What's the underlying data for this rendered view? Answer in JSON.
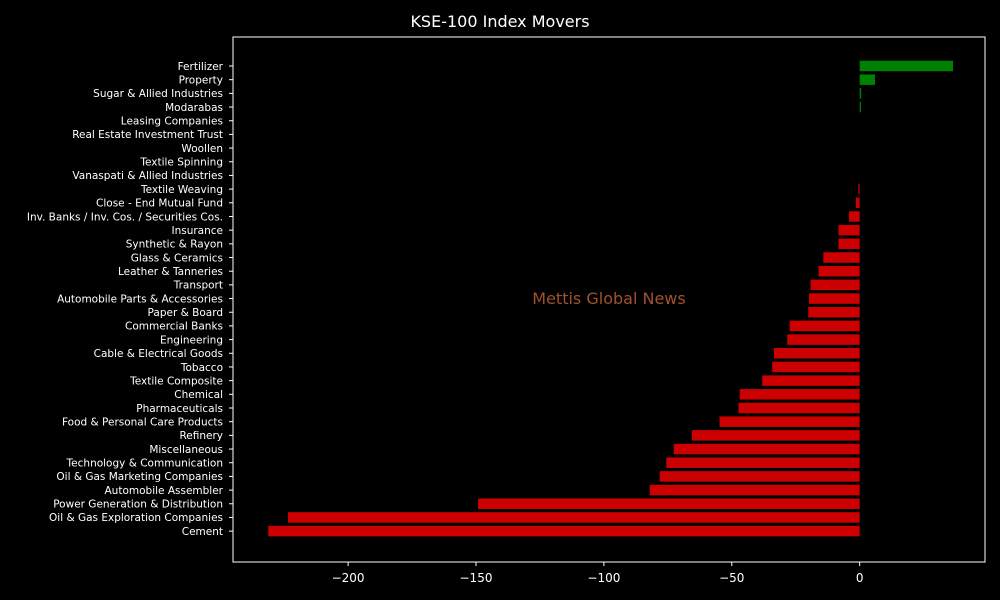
{
  "chart_data": {
    "type": "bar",
    "orientation": "horizontal",
    "title": "KSE-100 Index Movers",
    "watermark": "Mettis Global News",
    "xlabel": "",
    "ylabel": "",
    "xlim": [
      -245,
      49
    ],
    "xticks": [
      -200,
      -150,
      -100,
      -50,
      0
    ],
    "xtick_labels": [
      "−200",
      "−150",
      "−100",
      "−50",
      "0"
    ],
    "grid": false,
    "legend": "none",
    "colors": {
      "positive": "#008000",
      "negative": "#cc0000",
      "background": "#000000",
      "axes": "#ffffff",
      "watermark": "#a0522d"
    },
    "categories": [
      "Fertilizer",
      "Property",
      "Sugar & Allied Industries",
      "Modarabas",
      "Leasing Companies",
      "Real Estate Investment Trust",
      "Woollen",
      "Textile Spinning",
      "Vanaspati & Allied Industries",
      "Textile Weaving",
      "Close - End Mutual Fund",
      "Inv. Banks / Inv. Cos. / Securities Cos.",
      "Insurance",
      "Synthetic & Rayon",
      "Glass & Ceramics",
      "Leather & Tanneries",
      "Transport",
      "Automobile Parts & Accessories",
      "Paper & Board",
      "Commercial Banks",
      "Engineering",
      "Cable & Electrical Goods",
      "Tobacco",
      "Textile Composite",
      "Chemical",
      "Pharmaceuticals",
      "Food & Personal Care Products",
      "Refinery",
      "Miscellaneous",
      "Technology & Communication",
      "Oil & Gas Marketing Companies",
      "Automobile Assembler",
      "Power Generation & Distribution",
      "Oil & Gas Exploration Companies",
      "Cement"
    ],
    "values": [
      36.5,
      6.0,
      0.6,
      0.5,
      0,
      0,
      0,
      0,
      0,
      -0.5,
      -1.5,
      -4.2,
      -8.3,
      -8.3,
      -14.2,
      -16.1,
      -19.2,
      -19.8,
      -20.1,
      -27.4,
      -28.3,
      -33.5,
      -34.2,
      -38.1,
      -46.9,
      -47.4,
      -54.8,
      -65.6,
      -72.7,
      -75.6,
      -78.2,
      -82.1,
      -149.2,
      -223.5,
      -231.2
    ]
  }
}
